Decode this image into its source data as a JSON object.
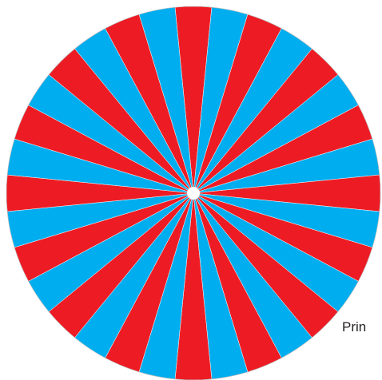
{
  "wheel": {
    "segment_count": 32,
    "colors": [
      "#ed1c24",
      "#00aeef"
    ],
    "center_dot_color": "#ffffff",
    "separator_color": "#ffffff",
    "outline_color": "#b3b3b3"
  },
  "caption": {
    "text": "Prin"
  }
}
